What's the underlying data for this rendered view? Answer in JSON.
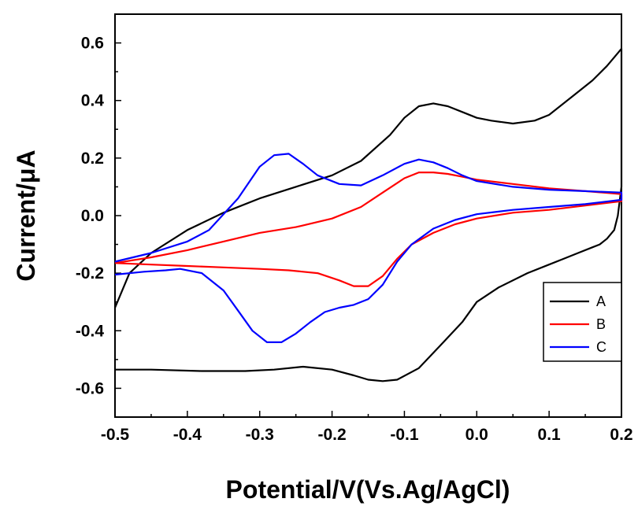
{
  "chart_data": {
    "type": "line",
    "title": "",
    "xlabel": "Potential/V(Vs.Ag/AgCl)",
    "ylabel": "Current/μA",
    "xlim": [
      -0.5,
      0.2
    ],
    "ylim": [
      -0.7,
      0.7
    ],
    "xticks": [
      "-0.5",
      "-0.4",
      "-0.3",
      "-0.2",
      "-0.1",
      "0.0",
      "0.1",
      "0.2"
    ],
    "yticks": [
      "-0.6",
      "-0.4",
      "-0.2",
      "0.0",
      "0.2",
      "0.4",
      "0.6"
    ],
    "grid": false,
    "legend": "bottom-right",
    "series": [
      {
        "name": "A",
        "color": "#000000",
        "x": [
          -0.5,
          -0.48,
          -0.45,
          -0.4,
          -0.35,
          -0.3,
          -0.25,
          -0.2,
          -0.16,
          -0.12,
          -0.1,
          -0.08,
          -0.06,
          -0.04,
          -0.02,
          0.0,
          0.02,
          0.05,
          0.08,
          0.1,
          0.13,
          0.16,
          0.18,
          0.2,
          0.2,
          0.195,
          0.19,
          0.18,
          0.17,
          0.16,
          0.14,
          0.12,
          0.1,
          0.07,
          0.03,
          0.0,
          -0.02,
          -0.05,
          -0.08,
          -0.11,
          -0.13,
          -0.15,
          -0.17,
          -0.2,
          -0.24,
          -0.28,
          -0.32,
          -0.38,
          -0.45,
          -0.5
        ],
        "y": [
          -0.32,
          -0.2,
          -0.13,
          -0.05,
          0.01,
          0.06,
          0.1,
          0.14,
          0.19,
          0.28,
          0.34,
          0.38,
          0.39,
          0.38,
          0.36,
          0.34,
          0.33,
          0.32,
          0.33,
          0.35,
          0.41,
          0.47,
          0.52,
          0.58,
          0.1,
          0.0,
          -0.05,
          -0.08,
          -0.1,
          -0.11,
          -0.13,
          -0.15,
          -0.17,
          -0.2,
          -0.25,
          -0.3,
          -0.37,
          -0.45,
          -0.53,
          -0.57,
          -0.575,
          -0.57,
          -0.555,
          -0.535,
          -0.525,
          -0.535,
          -0.54,
          -0.54,
          -0.535,
          -0.535
        ]
      },
      {
        "name": "B",
        "color": "#ff0000",
        "x": [
          -0.5,
          -0.45,
          -0.4,
          -0.35,
          -0.3,
          -0.25,
          -0.2,
          -0.16,
          -0.13,
          -0.1,
          -0.08,
          -0.06,
          -0.04,
          -0.02,
          0.0,
          0.05,
          0.1,
          0.15,
          0.2,
          0.2,
          0.15,
          0.1,
          0.05,
          0.0,
          -0.03,
          -0.06,
          -0.09,
          -0.11,
          -0.13,
          -0.15,
          -0.17,
          -0.19,
          -0.22,
          -0.26,
          -0.3,
          -0.35,
          -0.4,
          -0.45,
          -0.5
        ],
        "y": [
          -0.165,
          -0.145,
          -0.12,
          -0.09,
          -0.06,
          -0.04,
          -0.01,
          0.03,
          0.08,
          0.13,
          0.15,
          0.15,
          0.145,
          0.135,
          0.125,
          0.11,
          0.095,
          0.085,
          0.075,
          0.05,
          0.035,
          0.02,
          0.01,
          -0.01,
          -0.03,
          -0.06,
          -0.1,
          -0.15,
          -0.21,
          -0.245,
          -0.245,
          -0.225,
          -0.2,
          -0.19,
          -0.185,
          -0.18,
          -0.175,
          -0.17,
          -0.165
        ]
      },
      {
        "name": "C",
        "color": "#0000ff",
        "x": [
          -0.5,
          -0.45,
          -0.4,
          -0.37,
          -0.33,
          -0.3,
          -0.28,
          -0.26,
          -0.24,
          -0.22,
          -0.19,
          -0.16,
          -0.13,
          -0.1,
          -0.08,
          -0.06,
          -0.04,
          -0.02,
          0.0,
          0.05,
          0.1,
          0.15,
          0.2,
          0.2,
          0.15,
          0.1,
          0.05,
          0.0,
          -0.03,
          -0.06,
          -0.09,
          -0.11,
          -0.13,
          -0.15,
          -0.17,
          -0.19,
          -0.21,
          -0.23,
          -0.25,
          -0.27,
          -0.29,
          -0.31,
          -0.33,
          -0.35,
          -0.38,
          -0.41,
          -0.43,
          -0.46,
          -0.5
        ],
        "y": [
          -0.16,
          -0.13,
          -0.09,
          -0.05,
          0.06,
          0.17,
          0.21,
          0.215,
          0.18,
          0.14,
          0.11,
          0.105,
          0.14,
          0.18,
          0.195,
          0.185,
          0.165,
          0.14,
          0.12,
          0.1,
          0.09,
          0.085,
          0.08,
          0.055,
          0.04,
          0.03,
          0.02,
          0.005,
          -0.015,
          -0.045,
          -0.1,
          -0.16,
          -0.24,
          -0.29,
          -0.31,
          -0.32,
          -0.335,
          -0.37,
          -0.41,
          -0.44,
          -0.44,
          -0.4,
          -0.33,
          -0.26,
          -0.2,
          -0.185,
          -0.19,
          -0.195,
          -0.205
        ]
      }
    ]
  }
}
